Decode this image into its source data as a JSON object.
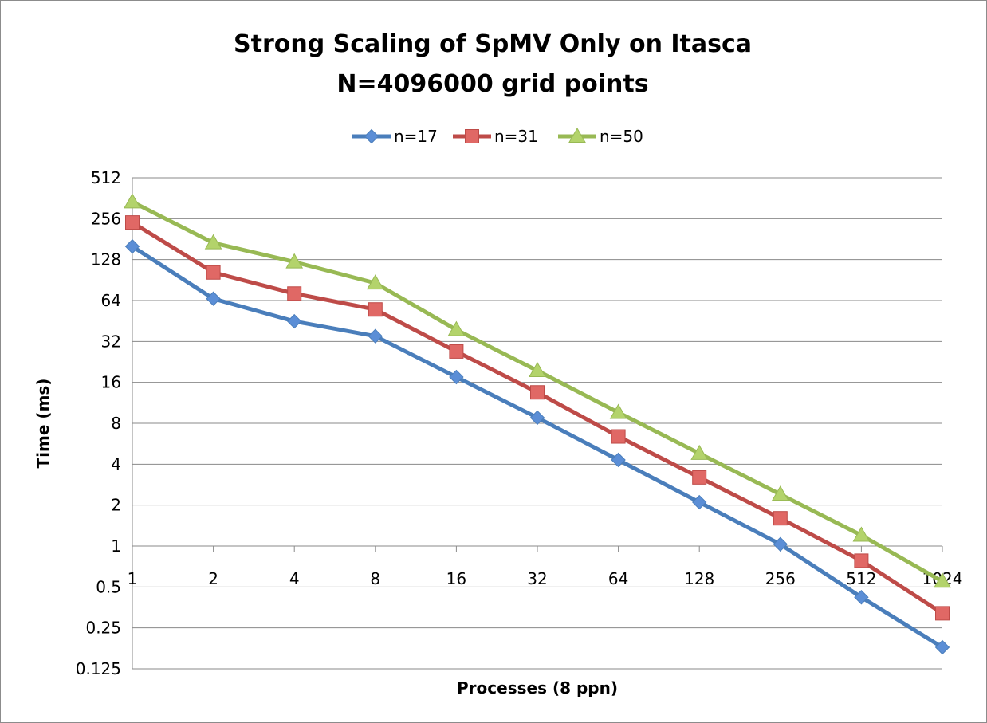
{
  "chart_data": {
    "type": "line",
    "title_lines": [
      "Strong Scaling of SpMV Only on Itasca",
      "N=4096000 grid points"
    ],
    "xlabel": "Processes (8 ppn)",
    "ylabel": "Time (ms)",
    "x_scale": "log2",
    "y_scale": "log2",
    "categories": [
      "1",
      "2",
      "4",
      "8",
      "16",
      "32",
      "64",
      "128",
      "256",
      "512",
      "1024"
    ],
    "y_ticks": [
      "0.125",
      "0.25",
      "0.5",
      "1",
      "2",
      "4",
      "8",
      "16",
      "32",
      "64",
      "128",
      "256",
      "512"
    ],
    "ylim": [
      0.125,
      512
    ],
    "grid": "horizontal",
    "legend_position": "top",
    "series": [
      {
        "name": "n=17",
        "color": "#4a7ebb",
        "marker_color": "#5b8ed6",
        "marker": "diamond",
        "values": [
          160,
          66,
          45,
          35,
          17.5,
          8.8,
          4.3,
          2.1,
          1.03,
          0.42,
          0.18
        ]
      },
      {
        "name": "n=31",
        "color": "#be4b48",
        "marker_color": "#e06865",
        "marker": "square",
        "values": [
          240,
          103,
          72,
          55,
          27,
          13.5,
          6.4,
          3.2,
          1.6,
          0.78,
          0.32
        ]
      },
      {
        "name": "n=50",
        "color": "#98b954",
        "marker_color": "#b3d36b",
        "marker": "triangle",
        "values": [
          340,
          170,
          123,
          86,
          39,
          19.5,
          9.6,
          4.8,
          2.4,
          1.2,
          0.55
        ]
      }
    ]
  }
}
